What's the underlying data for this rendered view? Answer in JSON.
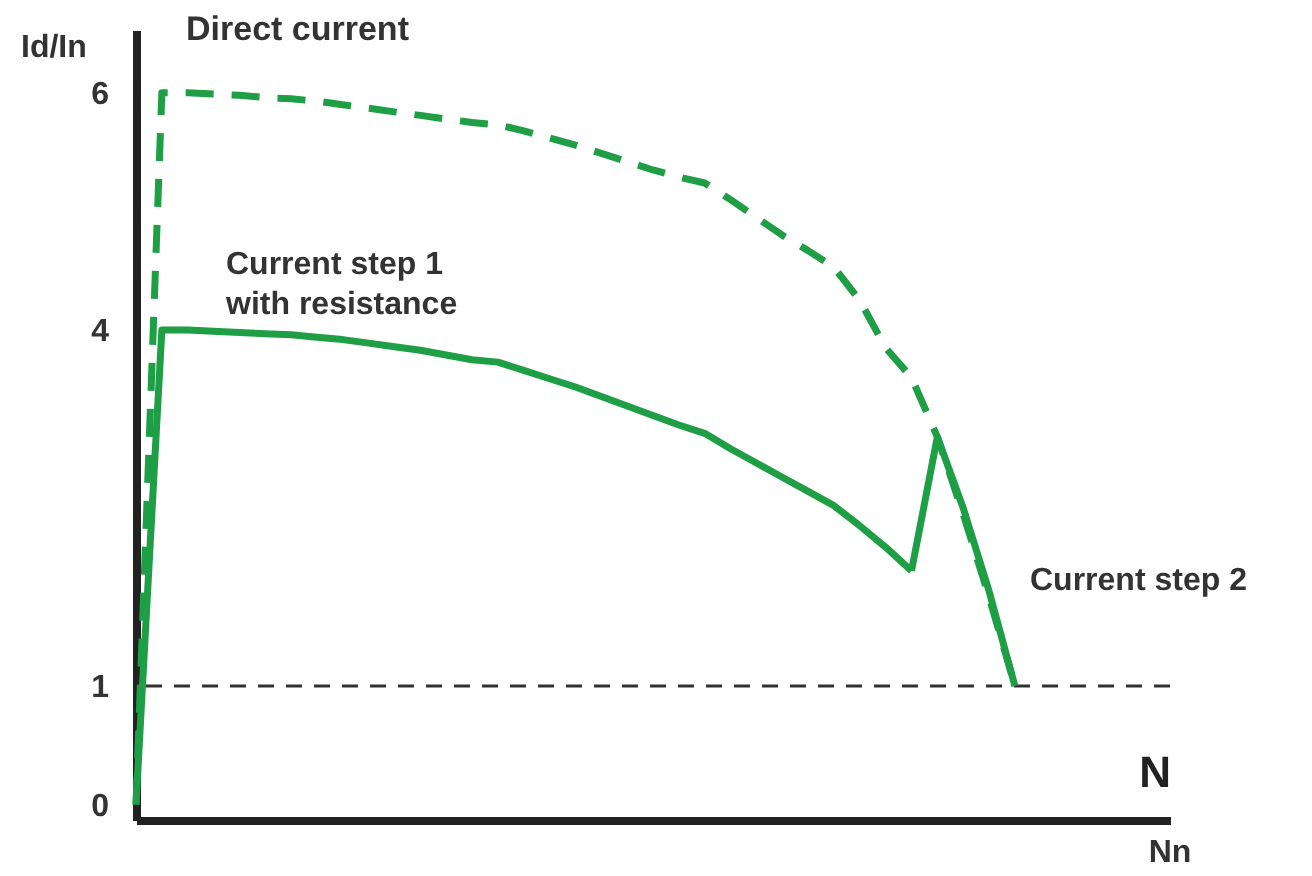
{
  "chart_data": {
    "type": "line",
    "xlabel": "N",
    "ylabel": "Id/In",
    "categories": [
      null,
      null,
      null,
      null,
      null,
      null,
      null,
      null,
      null,
      null,
      null,
      null,
      null,
      null,
      null,
      null,
      null,
      null,
      null,
      null,
      null,
      null,
      null,
      null,
      null,
      null,
      null,
      null,
      null,
      null,
      null,
      null,
      null,
      null,
      null,
      null,
      null,
      null,
      null,
      null,
      null
    ],
    "ylim": [
      -0.13,
      6.53
    ],
    "yticks": [
      0,
      1,
      4,
      6
    ],
    "series": [
      {
        "color": "#1e9e45",
        "line_style": "dashed",
        "values": [
          0,
          6.0,
          6.0,
          5.99,
          5.98,
          5.96,
          5.95,
          5.93,
          5.9,
          5.87,
          5.84,
          5.81,
          5.78,
          5.75,
          5.73,
          5.68,
          5.62,
          5.56,
          5.49,
          5.42,
          5.35,
          5.29,
          5.24,
          5.1,
          4.95,
          4.8,
          4.67,
          4.53,
          4.25,
          3.85,
          3.6,
          3.1,
          2.45,
          1.75,
          1.0,
          null,
          null,
          null,
          null,
          null,
          null
        ]
      },
      {
        "color": "#1e9e45",
        "line_style": "solid",
        "values": [
          0,
          4.0,
          4.0,
          3.99,
          3.98,
          3.97,
          3.96,
          3.94,
          3.92,
          3.89,
          3.86,
          3.83,
          3.79,
          3.75,
          3.73,
          3.66,
          3.59,
          3.52,
          3.44,
          3.36,
          3.28,
          3.2,
          3.13,
          3.0,
          2.88,
          2.76,
          2.64,
          2.52,
          2.35,
          2.17,
          1.97,
          null,
          null,
          null,
          null,
          null,
          null,
          null,
          null,
          null,
          null
        ]
      },
      {
        "color": "#1e9e45",
        "line_style": "solid",
        "values": [
          null,
          null,
          null,
          null,
          null,
          null,
          null,
          null,
          null,
          null,
          null,
          null,
          null,
          null,
          null,
          null,
          null,
          null,
          null,
          null,
          null,
          null,
          null,
          null,
          null,
          null,
          null,
          null,
          null,
          null,
          1.97,
          3.1,
          2.5,
          1.8,
          1.0,
          null,
          null,
          null,
          null,
          null,
          null
        ]
      }
    ],
    "ref_lines": [
      {
        "axis": "y",
        "value": 1,
        "color": "#333333",
        "line_style": "dashed"
      }
    ],
    "annotations": [
      "Nn",
      "Direct current",
      "Current step 1\nwith resistance",
      "Current step 2"
    ]
  }
}
